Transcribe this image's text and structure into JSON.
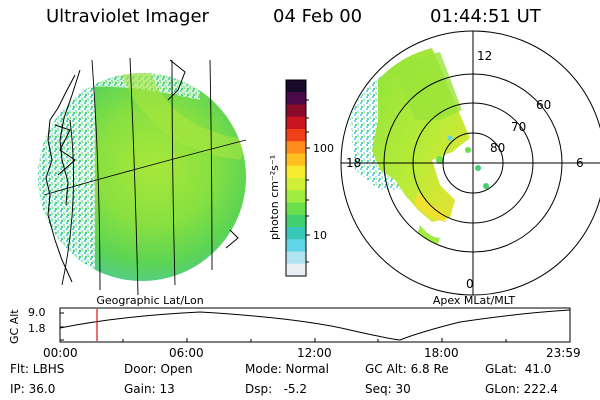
{
  "header": {
    "instrument": "Ultraviolet Imager",
    "date": "04 Feb 00",
    "time": "01:44:51 UT"
  },
  "geo_panel": {
    "caption": "Geographic Lat/Lon"
  },
  "polar_panel": {
    "caption": "Apex MLat/MLT",
    "mlt_labels": [
      "12",
      "18",
      "6",
      "0"
    ],
    "mlat_labels": [
      "60",
      "70",
      "80"
    ]
  },
  "colorbar": {
    "unit_label": "photon cm⁻²s⁻¹",
    "tick_labels": [
      "100",
      "10"
    ],
    "colors": [
      "#1a0a2a",
      "#4a0a4a",
      "#8a0a2a",
      "#c8141e",
      "#f04018",
      "#ff8c1c",
      "#ffc020",
      "#f8ec30",
      "#d0f038",
      "#a0ec40",
      "#6ce04c",
      "#40d070",
      "#38c8b8",
      "#60d4e8",
      "#b0e4f0",
      "#e8f0f4"
    ]
  },
  "timeline": {
    "axis_label": "GC Alt",
    "y_ticks": [
      "9.0",
      "1.8"
    ],
    "x_ticks": [
      "00:00",
      "06:00",
      "12:00",
      "18:00",
      "23:59"
    ],
    "current_time_marker": "01:44"
  },
  "info": {
    "filter": "Flt: LBHS",
    "ip": "IP: 36.0",
    "door": "Door: Open",
    "gain": "Gain: 13",
    "mode": "Mode: Normal",
    "dsp": "Dsp:   -5.2",
    "gc_alt": "GC Alt: 6.8 Re",
    "seq": "Seq: 30",
    "glat": "GLat:  41.0",
    "glon": "GLon: 222.4"
  },
  "colors": {
    "aurora_green": "#7fdc3c",
    "aurora_cyan": "#40c8d8",
    "aurora_yellow": "#f0e030",
    "marker_red": "#e01010"
  }
}
